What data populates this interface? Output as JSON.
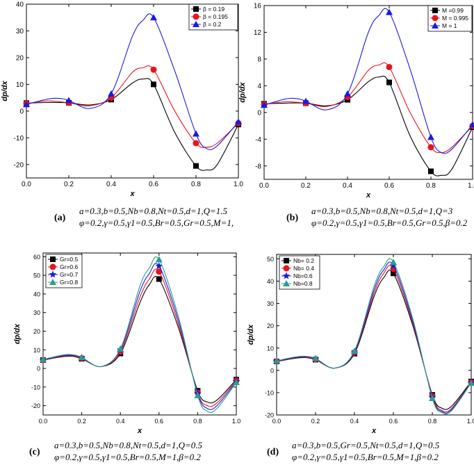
{
  "colors": {
    "black": "#000000",
    "red": "#e8141b",
    "blue": "#1a1ae6",
    "teal": "#2a9d8f"
  },
  "chart_data": [
    {
      "id": "a",
      "type": "line",
      "ylabel": "dp/dx",
      "xlabel": "x",
      "xlim": [
        0,
        1.0
      ],
      "ylim": [
        -25,
        40
      ],
      "xticks": [
        "0.0",
        "0.2",
        "0.4",
        "0.6",
        "0.8",
        "1.0"
      ],
      "yticks": [
        "-20",
        "-10",
        "0",
        "10",
        "20",
        "30",
        "40"
      ],
      "grid": false,
      "legend_position": "top-right",
      "markers_x": [
        0,
        0.2,
        0.4,
        0.6,
        0.8,
        1.0
      ],
      "series": [
        {
          "name": "β = 0.19",
          "color": "#000000",
          "marker": "square",
          "x": [
            0,
            0.1,
            0.2,
            0.3,
            0.4,
            0.5,
            0.55,
            0.6,
            0.7,
            0.8,
            0.85,
            0.9,
            1.0
          ],
          "y": [
            3,
            3.2,
            3.1,
            2.3,
            4.3,
            10.5,
            12,
            10,
            -8,
            -20.5,
            -22,
            -20,
            -5
          ]
        },
        {
          "name": "β = 0.195",
          "color": "#e8141b",
          "marker": "circle",
          "x": [
            0,
            0.1,
            0.2,
            0.3,
            0.4,
            0.5,
            0.55,
            0.6,
            0.7,
            0.8,
            0.85,
            0.9,
            1.0
          ],
          "y": [
            2.8,
            3.8,
            3.1,
            2,
            5,
            14.5,
            16.2,
            15.5,
            0,
            -12,
            -13.5,
            -12,
            -4.5
          ]
        },
        {
          "name": "β = 0.2",
          "color": "#1a1ae6",
          "marker": "triangle",
          "x": [
            0,
            0.1,
            0.15,
            0.2,
            0.3,
            0.4,
            0.5,
            0.55,
            0.6,
            0.7,
            0.8,
            0.85,
            0.9,
            1.0
          ],
          "y": [
            2.5,
            4.5,
            4.8,
            4,
            1,
            6.5,
            28,
            34,
            35,
            15,
            -8.5,
            -14,
            -13,
            -4
          ]
        }
      ],
      "caption_label": "(a)",
      "caption_line1": "a=0.3,b=0.5,Nb=0.8,Nt=0.5,d=1,Q=1.5",
      "caption_line2": "φ=0.2,γ=0.5,γ1=0.5,Br=0.5,Gr=0.5,M=1,"
    },
    {
      "id": "b",
      "type": "line",
      "ylabel": "dp/dx",
      "xlabel": "x",
      "xlim": [
        0,
        1.0
      ],
      "ylim": [
        -10,
        16
      ],
      "xticks": [
        "0.0",
        "0.2",
        "0.4",
        "0.6",
        "0.8",
        "1.0"
      ],
      "yticks": [
        "-8",
        "-4",
        "0",
        "4",
        "8",
        "12",
        "16"
      ],
      "grid": false,
      "legend_position": "top-right",
      "markers_x": [
        0,
        0.2,
        0.4,
        0.6,
        0.8,
        1.0
      ],
      "series": [
        {
          "name": "M =0.99",
          "color": "#000000",
          "marker": "square",
          "x": [
            0,
            0.1,
            0.2,
            0.3,
            0.4,
            0.5,
            0.55,
            0.6,
            0.7,
            0.8,
            0.85,
            0.9,
            1.0
          ],
          "y": [
            1.3,
            1.4,
            1.4,
            1.0,
            1.9,
            4.6,
            5.3,
            4.5,
            -3.5,
            -8.8,
            -9.4,
            -8.5,
            -2.2
          ]
        },
        {
          "name": "M = 0.995",
          "color": "#e8141b",
          "marker": "circle",
          "x": [
            0,
            0.1,
            0.2,
            0.3,
            0.4,
            0.5,
            0.55,
            0.6,
            0.7,
            0.8,
            0.85,
            0.9,
            1.0
          ],
          "y": [
            1.2,
            1.6,
            1.4,
            0.9,
            2.3,
            6.3,
            7.1,
            6.8,
            0,
            -5.2,
            -6,
            -5.2,
            -2
          ]
        },
        {
          "name": "M = 1",
          "color": "#1a1ae6",
          "marker": "triangle",
          "x": [
            0,
            0.1,
            0.15,
            0.2,
            0.3,
            0.4,
            0.5,
            0.55,
            0.6,
            0.7,
            0.8,
            0.85,
            0.9,
            1.0
          ],
          "y": [
            1.1,
            2,
            2.1,
            1.7,
            0.4,
            2.8,
            12,
            14.5,
            15,
            6.5,
            -3.7,
            -6,
            -5.5,
            -1.8
          ]
        }
      ],
      "caption_label": "(b)",
      "caption_line1": "a=0.3,b=0.5,Nb=0.8,Nt=0.5,d=1,Q=3",
      "caption_line2": "φ=0.2,γ=0.5,γ1=0.5,Br=0.5,Gr=0.5,β=0.2"
    },
    {
      "id": "c",
      "type": "line",
      "ylabel": "dp/dx",
      "xlabel": "x",
      "xlim": [
        0,
        1.0
      ],
      "ylim": [
        -25,
        62
      ],
      "xticks": [
        "0.0",
        "0.2",
        "0.4",
        "0.6",
        "0.8",
        "1.0"
      ],
      "yticks": [
        "-20",
        "-10",
        "0",
        "10",
        "20",
        "30",
        "40",
        "50",
        "60"
      ],
      "grid": false,
      "legend_position": "top-left",
      "markers_x": [
        0,
        0.2,
        0.4,
        0.6,
        0.8,
        1.0
      ],
      "series": [
        {
          "name": "Gr=0.5",
          "color": "#000000",
          "marker": "square",
          "x": [
            0,
            0.1,
            0.15,
            0.2,
            0.3,
            0.4,
            0.5,
            0.55,
            0.6,
            0.7,
            0.8,
            0.85,
            0.9,
            1.0
          ],
          "y": [
            4.5,
            6.3,
            6.5,
            5.2,
            1,
            8,
            35,
            45,
            48,
            22,
            -12,
            -18,
            -17,
            -6
          ]
        },
        {
          "name": "Gr=0.6",
          "color": "#e8141b",
          "marker": "circle",
          "x": [
            0,
            0.1,
            0.15,
            0.2,
            0.3,
            0.4,
            0.5,
            0.55,
            0.6,
            0.7,
            0.8,
            0.85,
            0.9,
            1.0
          ],
          "y": [
            4.6,
            6.6,
            6.8,
            5.5,
            1,
            9,
            38,
            48,
            52,
            24,
            -13,
            -20,
            -18.5,
            -6.5
          ]
        },
        {
          "name": "Gr=0.7",
          "color": "#1a1ae6",
          "marker": "star",
          "x": [
            0,
            0.1,
            0.15,
            0.2,
            0.3,
            0.4,
            0.5,
            0.55,
            0.6,
            0.7,
            0.8,
            0.85,
            0.9,
            1.0
          ],
          "y": [
            4.7,
            6.9,
            7.1,
            5.8,
            1,
            10,
            41,
            51,
            55,
            26,
            -13.5,
            -21.5,
            -20,
            -7
          ]
        },
        {
          "name": "Gr=0.8",
          "color": "#2a9d8f",
          "marker": "triangle",
          "x": [
            0,
            0.1,
            0.15,
            0.2,
            0.3,
            0.4,
            0.5,
            0.55,
            0.6,
            0.7,
            0.8,
            0.85,
            0.9,
            1.0
          ],
          "y": [
            4.8,
            7.2,
            7.4,
            6,
            1,
            10.5,
            44,
            54,
            58.5,
            28,
            -14.5,
            -23,
            -21.5,
            -7.5
          ]
        }
      ],
      "caption_label": "(c)",
      "caption_line1": "a=0.3,b=0.5,Nb=0.8,Nt=0.5,d=1,Q=0.5",
      "caption_line2": "φ=0.2,γ=0.5,γ1=0.5,Br=0.5,M=1,β=0.2"
    },
    {
      "id": "d",
      "type": "line",
      "ylabel": "dp/dx",
      "xlabel": "x",
      "xlim": [
        0,
        1.0
      ],
      "ylim": [
        -20,
        52
      ],
      "xticks": [
        "0.0",
        "0.2",
        "0.4",
        "0.6",
        "0.8",
        "1.0"
      ],
      "yticks": [
        "-20",
        "-10",
        "0",
        "10",
        "20",
        "30",
        "40",
        "50"
      ],
      "grid": false,
      "legend_position": "top-left",
      "markers_x": [
        0,
        0.2,
        0.4,
        0.6,
        0.8,
        1.0
      ],
      "series": [
        {
          "name": "Nb= 0.2",
          "color": "#000000",
          "marker": "square",
          "x": [
            0,
            0.1,
            0.15,
            0.2,
            0.3,
            0.4,
            0.5,
            0.55,
            0.6,
            0.7,
            0.8,
            0.85,
            0.9,
            1.0
          ],
          "y": [
            4,
            5.5,
            5.7,
            4.8,
            1,
            7.5,
            33,
            41.5,
            43.5,
            20,
            -11,
            -17,
            -16,
            -5
          ]
        },
        {
          "name": "Nb= 0.4",
          "color": "#e8141b",
          "marker": "circle",
          "x": [
            0,
            0.1,
            0.15,
            0.2,
            0.3,
            0.4,
            0.5,
            0.55,
            0.6,
            0.7,
            0.8,
            0.85,
            0.9,
            1.0
          ],
          "y": [
            4.1,
            5.7,
            5.9,
            5,
            1,
            8,
            34.5,
            43.5,
            45.5,
            21,
            -11.5,
            -18,
            -17,
            -5.3
          ]
        },
        {
          "name": "Nb=0.6",
          "color": "#1a1ae6",
          "marker": "star",
          "x": [
            0,
            0.1,
            0.15,
            0.2,
            0.3,
            0.4,
            0.5,
            0.55,
            0.6,
            0.7,
            0.8,
            0.85,
            0.9,
            1.0
          ],
          "y": [
            4.2,
            5.9,
            6.1,
            5.2,
            1,
            8.3,
            36,
            45,
            47,
            22,
            -12,
            -18.5,
            -17.5,
            -5.5
          ]
        },
        {
          "name": "Nb=0.8",
          "color": "#2a9d8f",
          "marker": "triangle",
          "x": [
            0,
            0.1,
            0.15,
            0.2,
            0.3,
            0.4,
            0.5,
            0.55,
            0.6,
            0.7,
            0.8,
            0.85,
            0.9,
            1.0
          ],
          "y": [
            4.3,
            6.1,
            6.3,
            5.4,
            1,
            8.7,
            37.5,
            46.5,
            48.5,
            23,
            -12.5,
            -19,
            -18,
            -5.7
          ]
        }
      ],
      "caption_label": "(d)",
      "caption_line1": "a=0.3,b=0.5,Gr=0.5,Nt=0.5,d=1,Q=0.5",
      "caption_line2": "φ=0.2,γ=0.5,γ1=0.5,Br=0.5,M=1,β=0.2"
    }
  ]
}
